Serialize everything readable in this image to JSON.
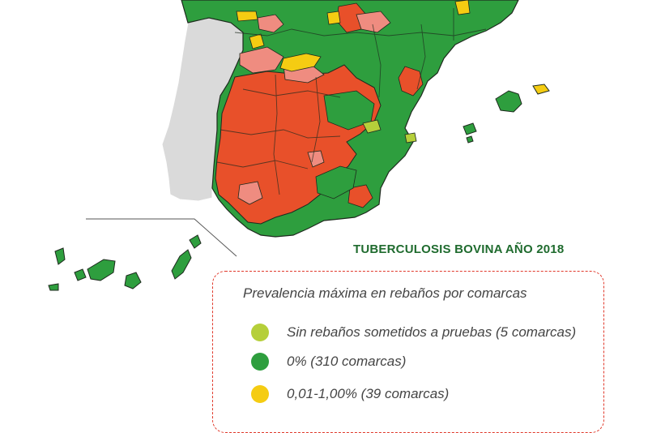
{
  "title": "TUBERCULOSIS BOVINA AÑO 2018",
  "legend": {
    "heading": "Prevalencia máxima en rebaños por comarcas",
    "items": [
      {
        "label": "Sin rebaños sometidos a pruebas  (5 comarcas)",
        "color": "#b5cf3a"
      },
      {
        "label": "0% (310 comarcas)",
        "color": "#2e9e3e"
      },
      {
        "label": "0,01-1,00% (39 comarcas)",
        "color": "#f5cc12"
      }
    ]
  },
  "colors": {
    "no_testing": "#b5cf3a",
    "zero": "#2e9e3e",
    "low": "#f5cc12",
    "mid": "#ef8c80",
    "high": "#e8502a",
    "portugal": "#dadada",
    "border": "#1e2a1e",
    "accent_border": "#e0392b",
    "title_color": "#1f6b2e"
  }
}
